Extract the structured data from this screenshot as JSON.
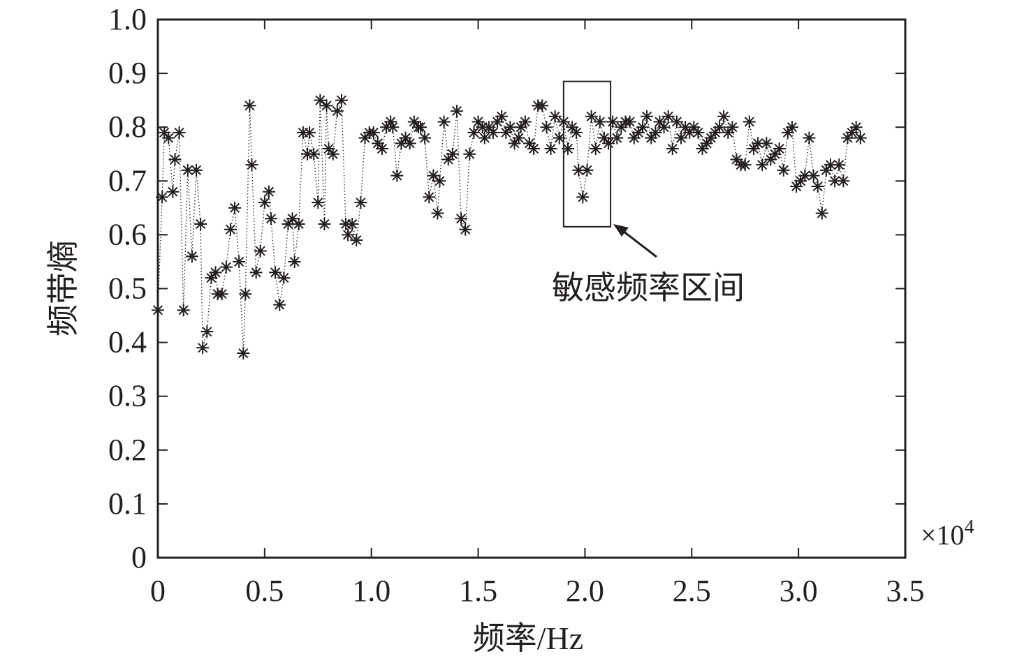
{
  "chart_data": {
    "type": "scatter",
    "marker": "asterisk",
    "line_style": "dotted",
    "xlabel": "频率/Hz",
    "ylabel": "频带熵",
    "x_multiplier": "×10",
    "x_multiplier_exp": "4",
    "xlim": [
      0,
      3.5
    ],
    "ylim": [
      0,
      1.0
    ],
    "xticks": [
      "0",
      "0.5",
      "1.0",
      "1.5",
      "2.0",
      "2.5",
      "3.0",
      "3.5"
    ],
    "yticks": [
      "0",
      "0.1",
      "0.2",
      "0.3",
      "0.4",
      "0.5",
      "0.6",
      "0.7",
      "0.8",
      "0.9",
      "1.0"
    ],
    "grid": false,
    "annotation": {
      "text": "敏感频率区间",
      "region": {
        "x": [
          1.9,
          2.12
        ],
        "y": [
          0.615,
          0.885
        ]
      }
    },
    "colors": {
      "ink": "#231f20",
      "background": "#ffffff"
    },
    "points": [
      [
        0.0,
        0.46
      ],
      [
        0.02,
        0.67
      ],
      [
        0.03,
        0.79
      ],
      [
        0.05,
        0.78
      ],
      [
        0.07,
        0.68
      ],
      [
        0.08,
        0.74
      ],
      [
        0.1,
        0.79
      ],
      [
        0.12,
        0.46
      ],
      [
        0.14,
        0.72
      ],
      [
        0.16,
        0.56
      ],
      [
        0.18,
        0.72
      ],
      [
        0.2,
        0.62
      ],
      [
        0.21,
        0.39
      ],
      [
        0.23,
        0.42
      ],
      [
        0.25,
        0.52
      ],
      [
        0.27,
        0.53
      ],
      [
        0.28,
        0.49
      ],
      [
        0.3,
        0.49
      ],
      [
        0.32,
        0.54
      ],
      [
        0.34,
        0.61
      ],
      [
        0.36,
        0.65
      ],
      [
        0.38,
        0.55
      ],
      [
        0.4,
        0.38
      ],
      [
        0.41,
        0.49
      ],
      [
        0.43,
        0.84
      ],
      [
        0.44,
        0.73
      ],
      [
        0.46,
        0.53
      ],
      [
        0.48,
        0.57
      ],
      [
        0.5,
        0.66
      ],
      [
        0.52,
        0.68
      ],
      [
        0.53,
        0.63
      ],
      [
        0.55,
        0.53
      ],
      [
        0.57,
        0.47
      ],
      [
        0.59,
        0.52
      ],
      [
        0.61,
        0.62
      ],
      [
        0.63,
        0.63
      ],
      [
        0.64,
        0.55
      ],
      [
        0.66,
        0.62
      ],
      [
        0.68,
        0.79
      ],
      [
        0.7,
        0.75
      ],
      [
        0.71,
        0.79
      ],
      [
        0.73,
        0.75
      ],
      [
        0.75,
        0.66
      ],
      [
        0.76,
        0.85
      ],
      [
        0.78,
        0.62
      ],
      [
        0.79,
        0.84
      ],
      [
        0.8,
        0.76
      ],
      [
        0.82,
        0.75
      ],
      [
        0.84,
        0.83
      ],
      [
        0.86,
        0.85
      ],
      [
        0.88,
        0.62
      ],
      [
        0.89,
        0.6
      ],
      [
        0.91,
        0.62
      ],
      [
        0.93,
        0.59
      ],
      [
        0.95,
        0.66
      ],
      [
        0.97,
        0.78
      ],
      [
        0.99,
        0.79
      ],
      [
        1.01,
        0.79
      ],
      [
        1.03,
        0.77
      ],
      [
        1.05,
        0.76
      ],
      [
        1.07,
        0.8
      ],
      [
        1.09,
        0.81
      ],
      [
        1.1,
        0.8
      ],
      [
        1.12,
        0.71
      ],
      [
        1.14,
        0.77
      ],
      [
        1.16,
        0.78
      ],
      [
        1.18,
        0.77
      ],
      [
        1.2,
        0.81
      ],
      [
        1.22,
        0.8
      ],
      [
        1.23,
        0.8
      ],
      [
        1.25,
        0.78
      ],
      [
        1.27,
        0.67
      ],
      [
        1.29,
        0.71
      ],
      [
        1.31,
        0.64
      ],
      [
        1.32,
        0.7
      ],
      [
        1.34,
        0.81
      ],
      [
        1.36,
        0.74
      ],
      [
        1.38,
        0.75
      ],
      [
        1.4,
        0.83
      ],
      [
        1.42,
        0.63
      ],
      [
        1.44,
        0.61
      ],
      [
        1.46,
        0.75
      ],
      [
        1.48,
        0.79
      ],
      [
        1.5,
        0.81
      ],
      [
        1.52,
        0.8
      ],
      [
        1.53,
        0.78
      ],
      [
        1.55,
        0.8
      ],
      [
        1.57,
        0.79
      ],
      [
        1.59,
        0.81
      ],
      [
        1.61,
        0.82
      ],
      [
        1.63,
        0.79
      ],
      [
        1.65,
        0.8
      ],
      [
        1.67,
        0.77
      ],
      [
        1.69,
        0.78
      ],
      [
        1.7,
        0.8
      ],
      [
        1.72,
        0.81
      ],
      [
        1.74,
        0.77
      ],
      [
        1.76,
        0.76
      ],
      [
        1.78,
        0.84
      ],
      [
        1.8,
        0.84
      ],
      [
        1.82,
        0.8
      ],
      [
        1.84,
        0.76
      ],
      [
        1.86,
        0.82
      ],
      [
        1.88,
        0.78
      ],
      [
        1.9,
        0.81
      ],
      [
        1.92,
        0.76
      ],
      [
        1.94,
        0.8
      ],
      [
        1.96,
        0.79
      ],
      [
        1.97,
        0.72
      ],
      [
        1.99,
        0.67
      ],
      [
        2.01,
        0.72
      ],
      [
        2.03,
        0.82
      ],
      [
        2.05,
        0.76
      ],
      [
        2.07,
        0.81
      ],
      [
        2.09,
        0.78
      ],
      [
        2.11,
        0.77
      ],
      [
        2.13,
        0.81
      ],
      [
        2.15,
        0.78
      ],
      [
        2.17,
        0.8
      ],
      [
        2.19,
        0.81
      ],
      [
        2.21,
        0.81
      ],
      [
        2.23,
        0.78
      ],
      [
        2.25,
        0.79
      ],
      [
        2.27,
        0.8
      ],
      [
        2.29,
        0.82
      ],
      [
        2.31,
        0.78
      ],
      [
        2.33,
        0.79
      ],
      [
        2.35,
        0.81
      ],
      [
        2.37,
        0.8
      ],
      [
        2.39,
        0.82
      ],
      [
        2.41,
        0.76
      ],
      [
        2.43,
        0.81
      ],
      [
        2.45,
        0.78
      ],
      [
        2.47,
        0.8
      ],
      [
        2.49,
        0.79
      ],
      [
        2.51,
        0.8
      ],
      [
        2.53,
        0.79
      ],
      [
        2.55,
        0.76
      ],
      [
        2.57,
        0.77
      ],
      [
        2.59,
        0.78
      ],
      [
        2.61,
        0.79
      ],
      [
        2.63,
        0.8
      ],
      [
        2.65,
        0.82
      ],
      [
        2.67,
        0.79
      ],
      [
        2.69,
        0.8
      ],
      [
        2.71,
        0.74
      ],
      [
        2.73,
        0.73
      ],
      [
        2.75,
        0.73
      ],
      [
        2.77,
        0.81
      ],
      [
        2.79,
        0.76
      ],
      [
        2.81,
        0.77
      ],
      [
        2.83,
        0.73
      ],
      [
        2.85,
        0.77
      ],
      [
        2.87,
        0.74
      ],
      [
        2.89,
        0.75
      ],
      [
        2.91,
        0.76
      ],
      [
        2.93,
        0.72
      ],
      [
        2.95,
        0.79
      ],
      [
        2.97,
        0.8
      ],
      [
        2.99,
        0.69
      ],
      [
        3.01,
        0.7
      ],
      [
        3.03,
        0.71
      ],
      [
        3.05,
        0.78
      ],
      [
        3.07,
        0.71
      ],
      [
        3.09,
        0.69
      ],
      [
        3.11,
        0.64
      ],
      [
        3.13,
        0.72
      ],
      [
        3.15,
        0.73
      ],
      [
        3.17,
        0.7
      ],
      [
        3.19,
        0.73
      ],
      [
        3.21,
        0.7
      ],
      [
        3.23,
        0.78
      ],
      [
        3.25,
        0.79
      ],
      [
        3.27,
        0.8
      ],
      [
        3.29,
        0.78
      ]
    ]
  }
}
